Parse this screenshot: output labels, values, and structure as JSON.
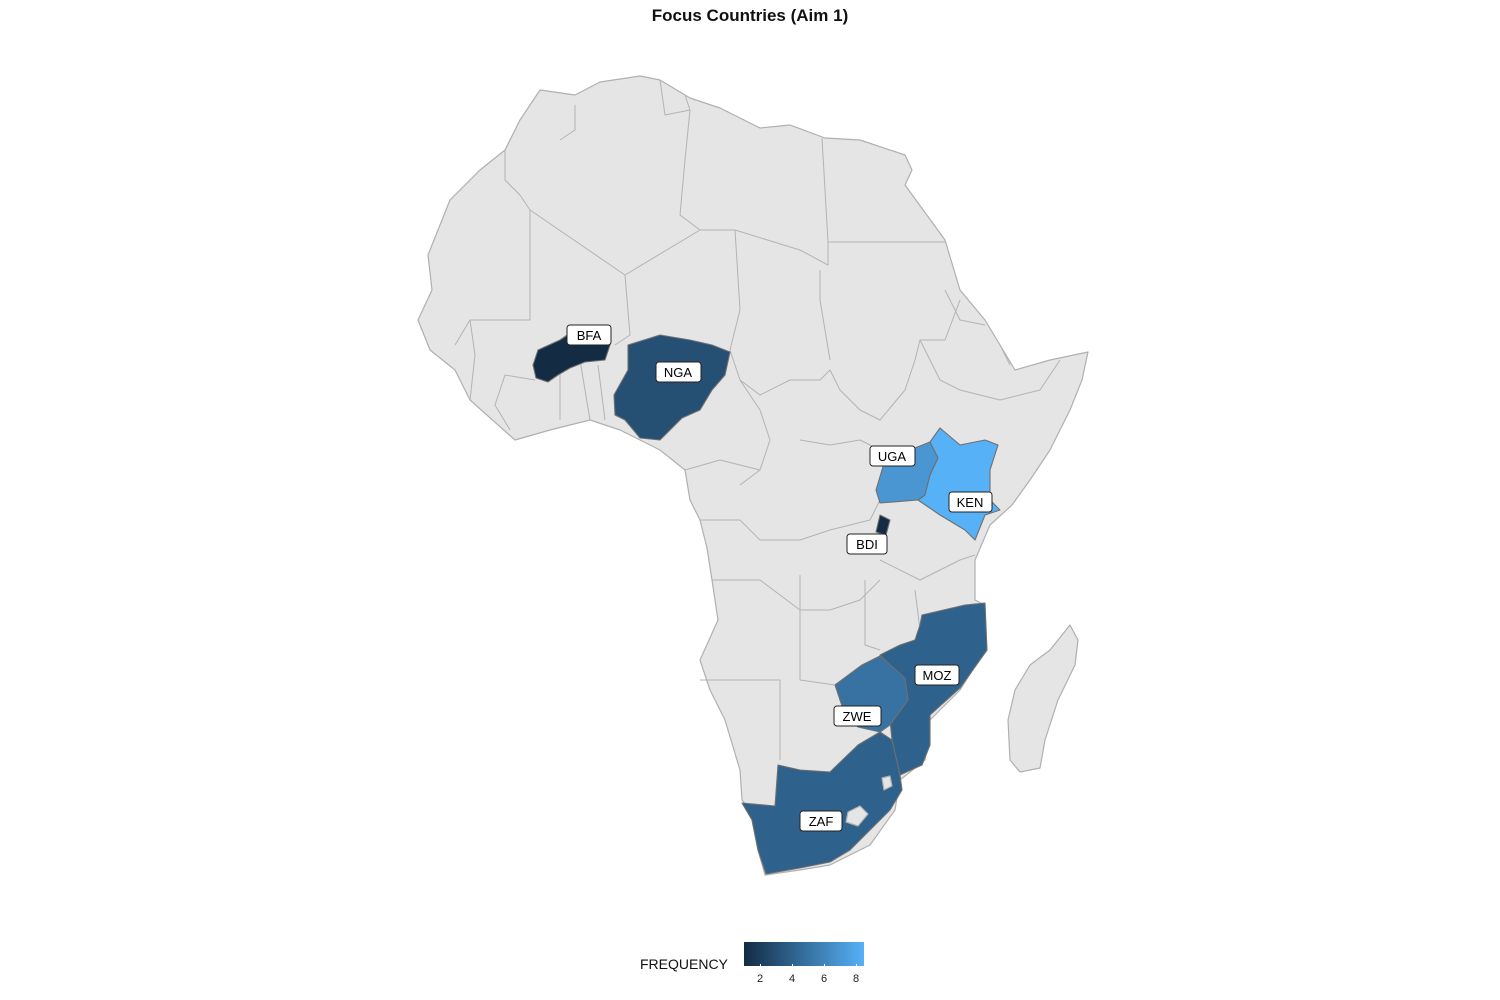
{
  "title": "Focus Countries (Aim 1)",
  "legend": {
    "title": "FREQUENCY",
    "ticks": [
      "2",
      "4",
      "6",
      "8"
    ],
    "tick_values": [
      2,
      4,
      6,
      8
    ],
    "range": [
      1,
      8.5
    ],
    "color_low": "#132b43",
    "color_high": "#56b1f7"
  },
  "colors": {
    "land": "#e5e5e5",
    "land_border": "#b0b0b0"
  },
  "countries": [
    {
      "code": "BFA",
      "label": "BFA",
      "frequency": 1
    },
    {
      "code": "NGA",
      "label": "NGA",
      "frequency": 3
    },
    {
      "code": "UGA",
      "label": "UGA",
      "frequency": 7
    },
    {
      "code": "KEN",
      "label": "KEN",
      "frequency": 8.5
    },
    {
      "code": "BDI",
      "label": "BDI",
      "frequency": 1
    },
    {
      "code": "MOZ",
      "label": "MOZ",
      "frequency": 4
    },
    {
      "code": "ZWE",
      "label": "ZWE",
      "frequency": 5
    },
    {
      "code": "ZAF",
      "label": "ZAF",
      "frequency": 4
    }
  ]
}
